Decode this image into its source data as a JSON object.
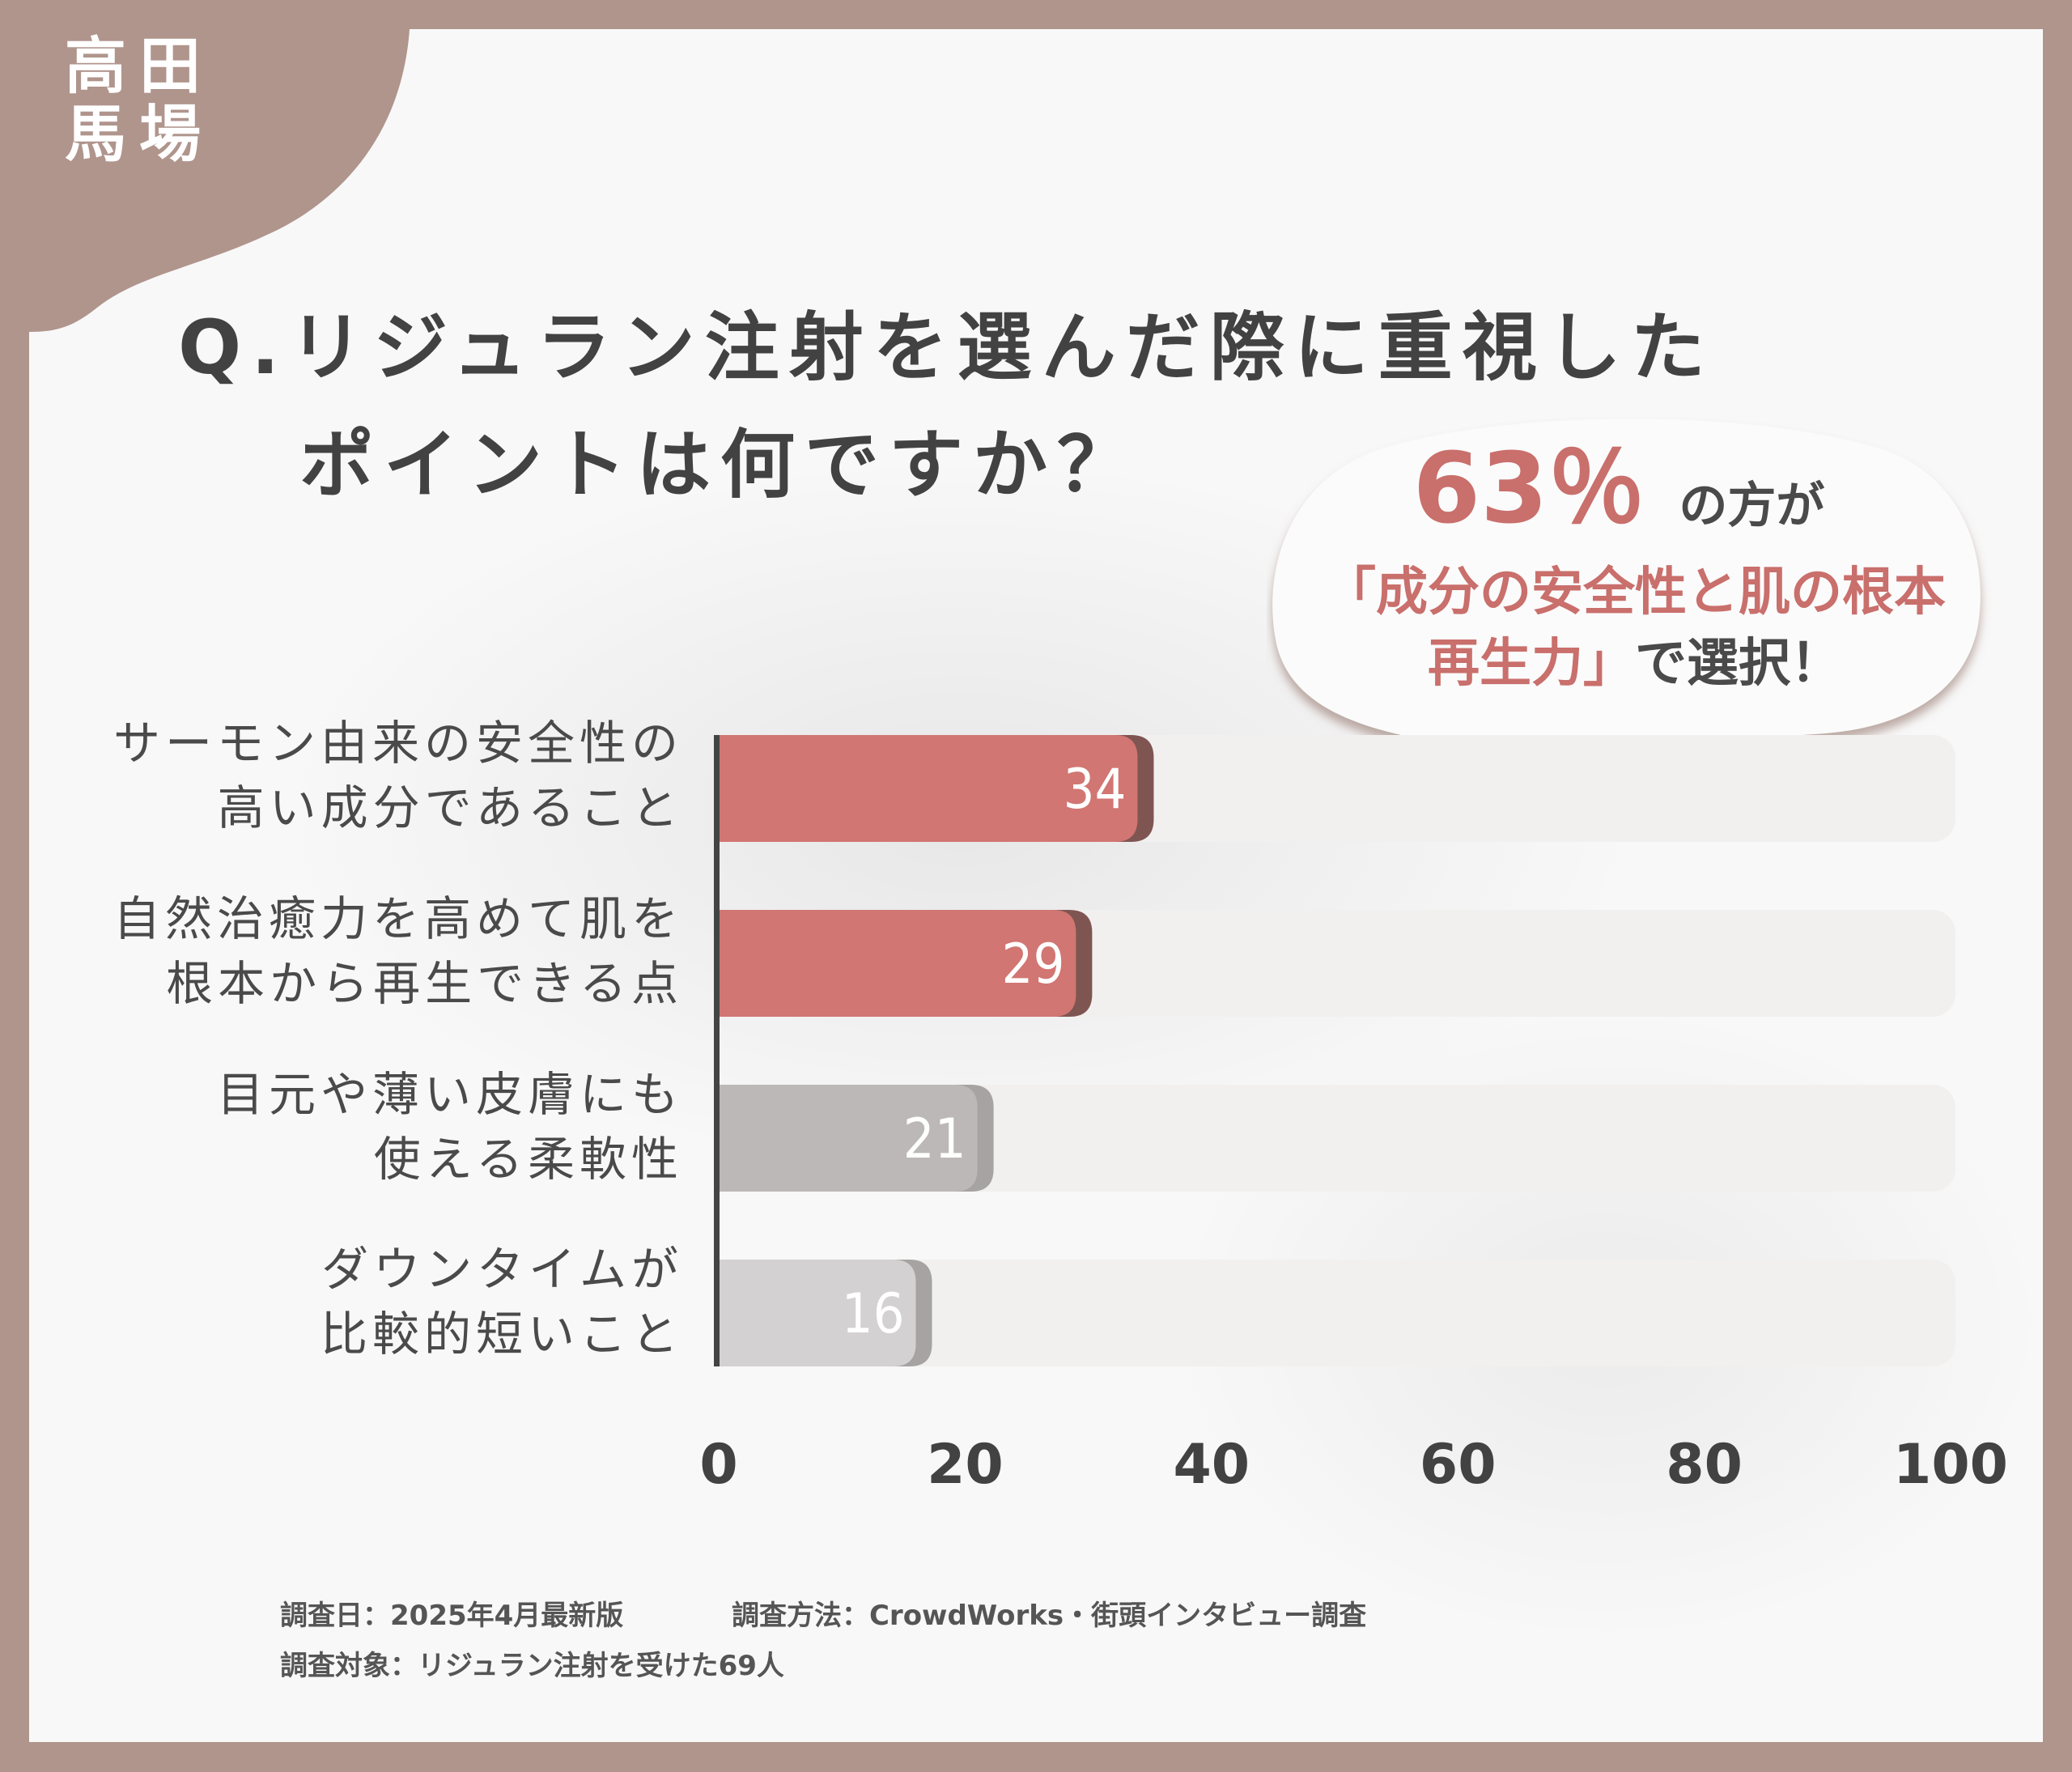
{
  "logo": {
    "chars": [
      "高",
      "田",
      "馬",
      "場"
    ]
  },
  "title": {
    "line1": "Q.リジュラン注射を選んだ際に重視した",
    "line2": "ポイントは何ですか？"
  },
  "callout": {
    "percent": "63％",
    "suffix": "の方が",
    "line2": "「成分の安全性と肌の根本",
    "line3_highlight": "再生力」",
    "line3_rest": "で選択！"
  },
  "chart_data": {
    "type": "bar",
    "orientation": "horizontal",
    "categories": [
      [
        "サーモン由来の安全性の",
        "高い成分であること"
      ],
      [
        "自然治癒力を高めて肌を",
        "根本から再生できる点"
      ],
      [
        "目元や薄い皮膚にも",
        "使える柔軟性"
      ],
      [
        "ダウンタイムが",
        "比較的短いこと"
      ]
    ],
    "values": [
      34,
      29,
      21,
      16
    ],
    "xlim": [
      0,
      100
    ],
    "xticks": [
      "0",
      "20",
      "40",
      "60",
      "80",
      "100"
    ],
    "grid": false,
    "colors": {
      "highlight": "#d17672",
      "highlight_shadow": "#7f5552",
      "neutral_0": "#bcb8b7",
      "neutral_1": "#d3d1d1",
      "neutral_shadow": "#a6a3a2",
      "track": "#f2f0ef",
      "axis": "#444444"
    }
  },
  "footer": {
    "date": "調査日：2025年4月最新版",
    "method": "調査方法：CrowdWorks・街頭インタビュー調査",
    "target": "調査対象：リジュラン注射を受けた69人"
  },
  "colors": {
    "frame": "#b0958d",
    "title": "#424242",
    "accent": "#c96f6c"
  }
}
